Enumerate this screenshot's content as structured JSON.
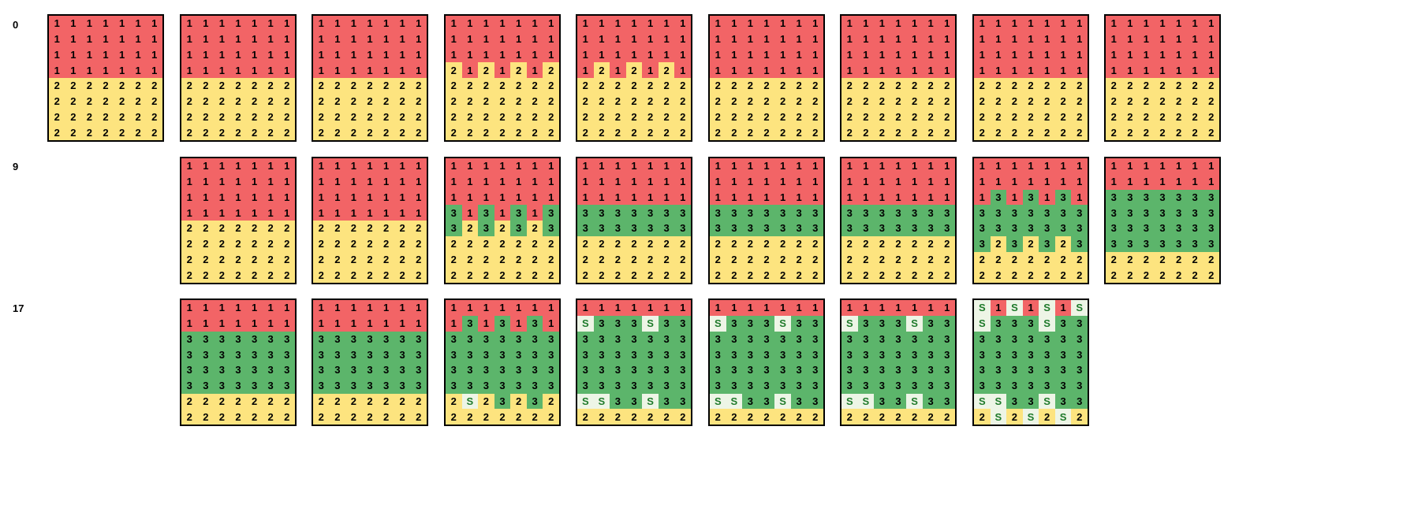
{
  "colors": {
    "1": "#f26466",
    "2": "#fde47f",
    "3": "#5cb56b",
    "S": "#edf5e6"
  },
  "rows": [
    {
      "label": "0",
      "start_col": 0,
      "grids": [
        [
          "1111111",
          "1111111",
          "1111111",
          "1111111",
          "2222222",
          "2222222",
          "2222222",
          "2222222"
        ],
        [
          "1111111",
          "1111111",
          "1111111",
          "1111111",
          "2222222",
          "2222222",
          "2222222",
          "2222222"
        ],
        [
          "1111111",
          "1111111",
          "1111111",
          "1111111",
          "2222222",
          "2222222",
          "2222222",
          "2222222"
        ],
        [
          "1111111",
          "1111111",
          "1111111",
          "2121212",
          "2222222",
          "2222222",
          "2222222",
          "2222222"
        ],
        [
          "1111111",
          "1111111",
          "1111111",
          "1212121",
          "2222222",
          "2222222",
          "2222222",
          "2222222"
        ],
        [
          "1111111",
          "1111111",
          "1111111",
          "1111111",
          "2222222",
          "2222222",
          "2222222",
          "2222222"
        ],
        [
          "1111111",
          "1111111",
          "1111111",
          "1111111",
          "2222222",
          "2222222",
          "2222222",
          "2222222"
        ],
        [
          "1111111",
          "1111111",
          "1111111",
          "1111111",
          "2222222",
          "2222222",
          "2222222",
          "2222222"
        ],
        [
          "1111111",
          "1111111",
          "1111111",
          "1111111",
          "2222222",
          "2222222",
          "2222222",
          "2222222"
        ]
      ]
    },
    {
      "label": "9",
      "start_col": 1,
      "grids": [
        [
          "1111111",
          "1111111",
          "1111111",
          "1111111",
          "2222222",
          "2222222",
          "2222222",
          "2222222"
        ],
        [
          "1111111",
          "1111111",
          "1111111",
          "1111111",
          "2222222",
          "2222222",
          "2222222",
          "2222222"
        ],
        [
          "1111111",
          "1111111",
          "1111111",
          "3131313",
          "3232323",
          "2222222",
          "2222222",
          "2222222"
        ],
        [
          "1111111",
          "1111111",
          "1111111",
          "3333333",
          "3333333",
          "2222222",
          "2222222",
          "2222222"
        ],
        [
          "1111111",
          "1111111",
          "1111111",
          "3333333",
          "3333333",
          "2222222",
          "2222222",
          "2222222"
        ],
        [
          "1111111",
          "1111111",
          "1111111",
          "3333333",
          "3333333",
          "2222222",
          "2222222",
          "2222222"
        ],
        [
          "1111111",
          "1111111",
          "1313131",
          "3333333",
          "3333333",
          "3232323",
          "2222222",
          "2222222"
        ],
        [
          "1111111",
          "1111111",
          "3333333",
          "3333333",
          "3333333",
          "3333333",
          "2222222",
          "2222222"
        ]
      ]
    },
    {
      "label": "17",
      "start_col": 1,
      "grids": [
        [
          "1111111",
          "1111111",
          "3333333",
          "3333333",
          "3333333",
          "3333333",
          "2222222",
          "2222222"
        ],
        [
          "1111111",
          "1111111",
          "3333333",
          "3333333",
          "3333333",
          "3333333",
          "2222222",
          "2222222"
        ],
        [
          "1111111",
          "1313131",
          "3333333",
          "3333333",
          "3333333",
          "3333333",
          "2S23232",
          "2222222"
        ],
        [
          "1111111",
          "S333S33",
          "3333333",
          "3333333",
          "3333333",
          "3333333",
          "SS33S33",
          "2222222"
        ],
        [
          "1111111",
          "S333S33",
          "3333333",
          "3333333",
          "3333333",
          "3333333",
          "SS33S33",
          "2222222"
        ],
        [
          "1111111",
          "S333S33",
          "3333333",
          "3333333",
          "3333333",
          "3333333",
          "SS33S33",
          "2222222"
        ],
        [
          "S1S1S1S",
          "S333S33",
          "3333333",
          "3333333",
          "3333333",
          "3333333",
          "SS33S33",
          "2S2S2S2"
        ]
      ]
    }
  ]
}
